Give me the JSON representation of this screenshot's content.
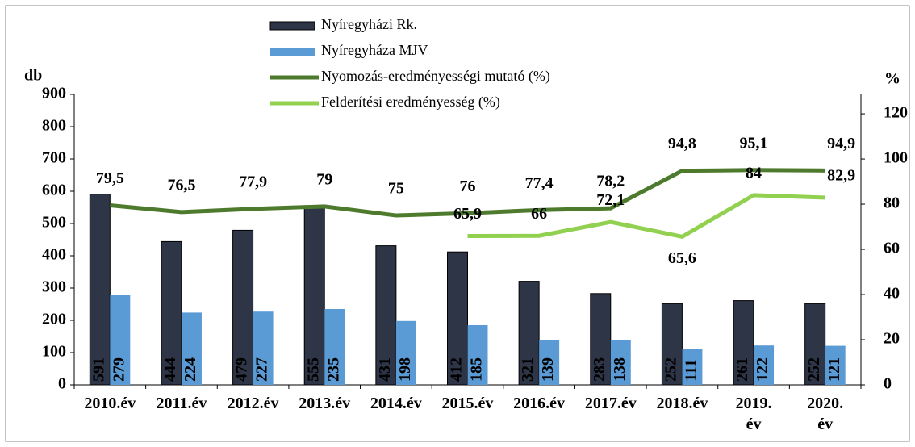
{
  "chart_data": {
    "type": "bar-line",
    "y_label": "db",
    "y2_label": "%",
    "categories": [
      "2010.év",
      "2011.év",
      "2012.év",
      "2013.év",
      "2014.év",
      "2015.év",
      "2016.év",
      "2017.év",
      "2018.év",
      "2019. év",
      "2020. év"
    ],
    "series": [
      {
        "name": "Nyíregyházi Rk.",
        "type": "bar",
        "color": "#2e3547",
        "values": [
          591,
          444,
          479,
          555,
          431,
          412,
          321,
          283,
          252,
          261,
          252
        ]
      },
      {
        "name": "Nyíregyháza MJV",
        "type": "bar",
        "color": "#5b9bd5",
        "values": [
          279,
          224,
          227,
          235,
          198,
          185,
          139,
          138,
          111,
          122,
          121
        ]
      },
      {
        "name": "Nyomozás-eredményességi mutató (%)",
        "type": "line",
        "axis": "y2",
        "color": "#4e7a2e",
        "values": [
          79.5,
          76.5,
          77.9,
          79,
          75,
          76,
          77.4,
          78.2,
          94.8,
          95.1,
          94.9
        ],
        "value_labels": [
          "79,5",
          "76,5",
          "77,9",
          "79",
          "75",
          "76",
          "77,4",
          "78,2",
          "94,8",
          "95,1",
          "94,9"
        ]
      },
      {
        "name": "Felderítési eredményesség (%)",
        "type": "line",
        "axis": "y2",
        "color": "#92d050",
        "values": [
          null,
          null,
          null,
          null,
          null,
          65.9,
          66,
          72.1,
          65.6,
          84,
          82.9
        ],
        "value_labels": [
          null,
          null,
          null,
          null,
          null,
          "65,9",
          "66",
          "72,1",
          "65,6",
          "84",
          "82,9"
        ]
      }
    ],
    "ylim": [
      0,
      900
    ],
    "yticks": [
      0,
      100,
      200,
      300,
      400,
      500,
      600,
      700,
      800,
      900
    ],
    "y2lim": [
      0,
      128.6
    ],
    "y2ticks": [
      0,
      20,
      40,
      60,
      80,
      100,
      120
    ]
  }
}
